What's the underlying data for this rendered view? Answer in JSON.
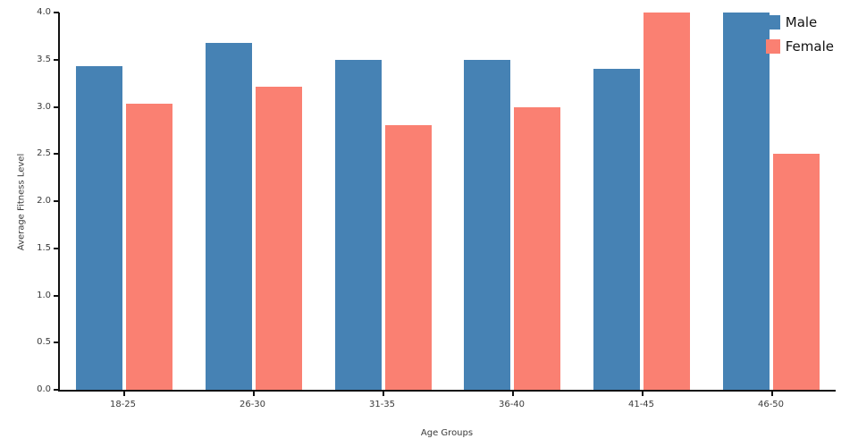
{
  "chart_data": {
    "type": "bar",
    "title": "",
    "xlabel": "Age Groups",
    "ylabel": "Average Fitness Level",
    "categories": [
      "18-25",
      "26-30",
      "31-35",
      "36-40",
      "41-45",
      "46-50"
    ],
    "series": [
      {
        "name": "Male",
        "color": "#4682B4",
        "values": [
          3.43,
          3.68,
          3.5,
          3.5,
          3.4,
          4.0
        ]
      },
      {
        "name": "Female",
        "color": "#FA8072",
        "values": [
          3.03,
          3.21,
          2.81,
          3.0,
          4.0,
          2.5
        ]
      }
    ],
    "ylim": [
      0,
      4.0
    ],
    "ytick_step": 0.5,
    "ytick_format_decimals": 1,
    "grid": false,
    "legend_position": "top-right"
  }
}
